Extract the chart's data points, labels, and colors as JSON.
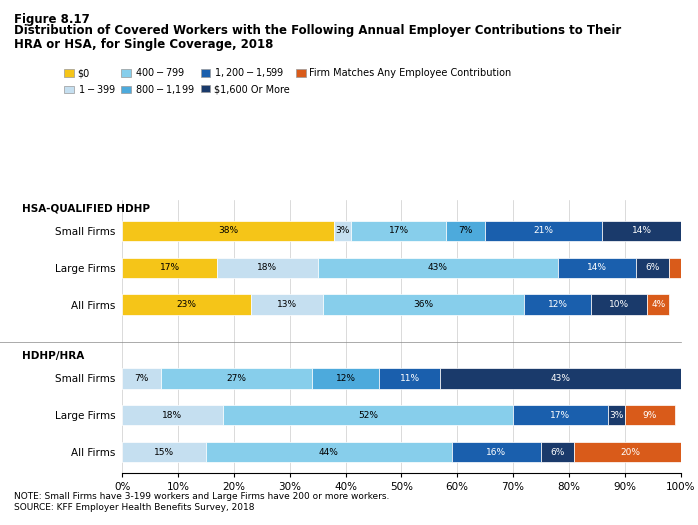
{
  "figure_label": "Figure 8.17",
  "title_line1": "Distribution of Covered Workers with the Following Annual Employer Contributions to Their",
  "title_line2": "HRA or HSA, for Single Coverage, 2018",
  "note": "NOTE: Small Firms have 3-199 workers and Large Firms have 200 or more workers.\nSOURCE: KFF Employer Health Benefits Survey, 2018",
  "legend_labels": [
    "$0",
    "$1 - $399",
    "$400 - $799",
    "$800 - $1,199",
    "$1,200 - $1,599",
    "$1,600 Or More",
    "Firm Matches Any Employee Contribution"
  ],
  "colors": [
    "#F5C518",
    "#C5DFF0",
    "#87CEEB",
    "#4DAADC",
    "#1A5FAD",
    "#1A3A6B",
    "#D95B1A"
  ],
  "bar_data": [
    [
      38,
      3,
      17,
      7,
      21,
      14,
      0
    ],
    [
      17,
      18,
      43,
      0,
      14,
      6,
      2
    ],
    [
      23,
      13,
      36,
      0,
      12,
      10,
      4
    ],
    [
      0,
      7,
      27,
      12,
      11,
      43,
      0
    ],
    [
      0,
      18,
      52,
      0,
      17,
      3,
      9
    ],
    [
      0,
      15,
      44,
      0,
      16,
      6,
      20
    ]
  ],
  "bar_labels": [
    [
      "38%",
      "3%",
      "17%",
      "7%",
      "21%",
      "14%",
      ""
    ],
    [
      "17%",
      "18%",
      "43%",
      "",
      "14%",
      "6%",
      ""
    ],
    [
      "23%",
      "13%",
      "36%",
      "",
      "12%",
      "10%",
      "4%"
    ],
    [
      "",
      "7%",
      "27%",
      "12%",
      "11%",
      "43%",
      ""
    ],
    [
      "",
      "18%",
      "52%",
      "",
      "17%",
      "3%",
      "9%"
    ],
    [
      "",
      "15%",
      "44%",
      "",
      "16%",
      "6%",
      "20%"
    ]
  ],
  "background_color": "#ffffff",
  "bar_height": 0.55
}
